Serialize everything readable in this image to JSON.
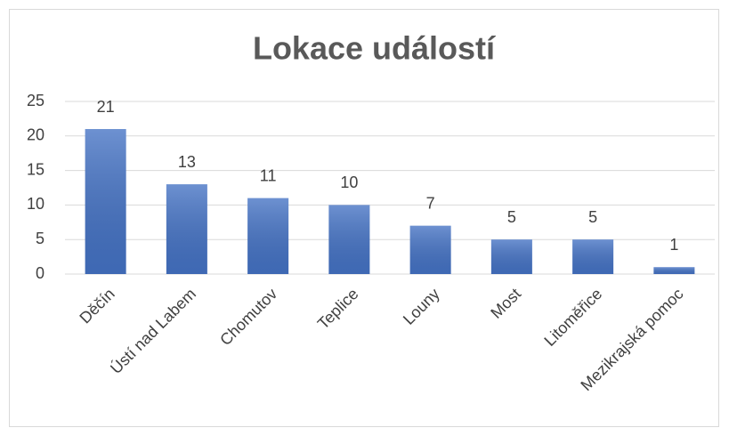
{
  "chart_data": {
    "type": "bar",
    "title": "Lokace událostí",
    "categories": [
      "Děčín",
      "Ústí nad Labem",
      "Chomutov",
      "Teplice",
      "Louny",
      "Most",
      "Litoměřice",
      "Mezikrajská pomoc"
    ],
    "values": [
      21,
      13,
      11,
      10,
      7,
      5,
      5,
      1
    ],
    "color": "#4472c4",
    "ylim": [
      0,
      25
    ],
    "yticks": [
      0,
      5,
      10,
      15,
      20,
      25
    ],
    "grid": true
  }
}
